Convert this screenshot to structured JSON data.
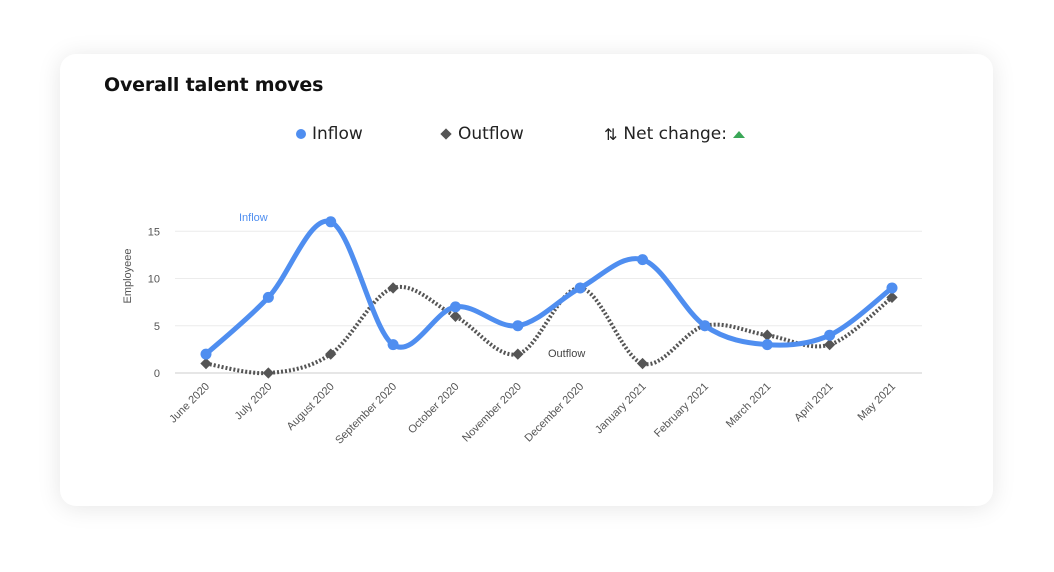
{
  "card": {
    "title": "Overall talent moves"
  },
  "legend": {
    "inflow_label": "Inflow",
    "outflow_label": "Outflow",
    "net_change_label": "Net change:",
    "net_change_icon": "up-triangle-icon",
    "arrows_icon": "up-down-arrows-icon"
  },
  "colors": {
    "inflow": "#4f8ef0",
    "outflow": "#555555",
    "net_change_up": "#3aa757"
  },
  "chart_data": {
    "type": "line",
    "categories": [
      "June 2020",
      "July 2020",
      "August 2020",
      "September 2020",
      "October 2020",
      "November 2020",
      "December 2020",
      "January 2021",
      "February 2021",
      "March 2021",
      "April 2021",
      "May 2021"
    ],
    "series": [
      {
        "name": "Inflow",
        "style": "solid",
        "marker": "circle",
        "values": [
          2,
          8,
          16,
          3,
          7,
          5,
          9,
          12,
          5,
          3,
          4,
          9
        ]
      },
      {
        "name": "Outflow",
        "style": "dotted",
        "marker": "diamond",
        "values": [
          1,
          0,
          2,
          9,
          6,
          2,
          9,
          1,
          5,
          4,
          3,
          8
        ]
      }
    ],
    "annotations": [
      "Inflow",
      "Outflow"
    ],
    "xlabel": "",
    "ylabel": "Employeee",
    "yticks": [
      0,
      5,
      10,
      15
    ],
    "ylim": [
      0,
      15
    ],
    "grid": true
  }
}
